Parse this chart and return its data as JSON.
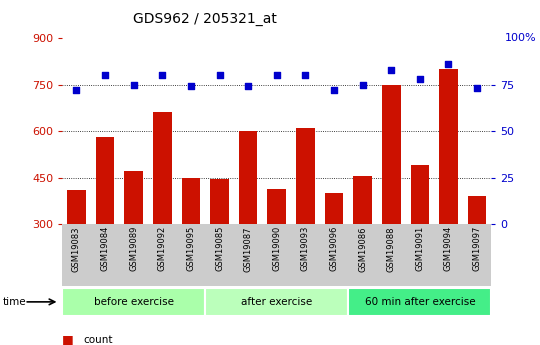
{
  "title": "GDS962 / 205321_at",
  "samples": [
    "GSM19083",
    "GSM19084",
    "GSM19089",
    "GSM19092",
    "GSM19095",
    "GSM19085",
    "GSM19087",
    "GSM19090",
    "GSM19093",
    "GSM19096",
    "GSM19086",
    "GSM19088",
    "GSM19091",
    "GSM19094",
    "GSM19097"
  ],
  "counts": [
    410,
    580,
    470,
    660,
    450,
    445,
    600,
    415,
    610,
    400,
    455,
    750,
    490,
    800,
    390
  ],
  "percentiles": [
    72,
    80,
    75,
    80,
    74,
    80,
    74,
    80,
    80,
    72,
    75,
    83,
    78,
    86,
    73
  ],
  "groups": [
    {
      "label": "before exercise",
      "start": 0,
      "end": 5,
      "color": "#aaffaa"
    },
    {
      "label": "after exercise",
      "start": 5,
      "end": 10,
      "color": "#bbffbb"
    },
    {
      "label": "60 min after exercise",
      "start": 10,
      "end": 15,
      "color": "#44ee88"
    }
  ],
  "ylim_left": [
    300,
    900
  ],
  "ylim_right": [
    0,
    100
  ],
  "yticks_left": [
    300,
    450,
    600,
    750,
    900
  ],
  "yticks_right": [
    0,
    25,
    50,
    75,
    100
  ],
  "bar_color": "#cc1100",
  "dot_color": "#0000cc",
  "bg_color": "#cccccc",
  "plot_bg": "#ffffff",
  "grid_color": "#000000",
  "left_tick_color": "#cc1100",
  "right_tick_color": "#0000cc",
  "right_top_label": "100%"
}
